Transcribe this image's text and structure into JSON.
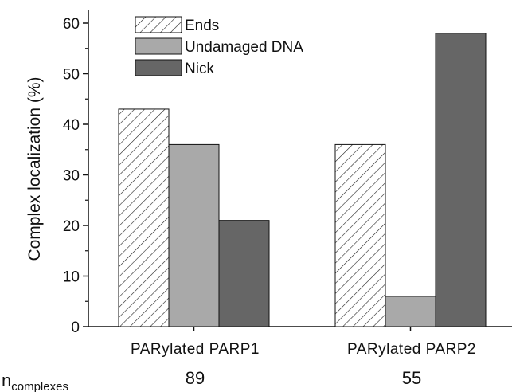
{
  "chart_data": {
    "type": "bar",
    "title": "",
    "xlabel": "",
    "ylabel": "Complex localization (%)",
    "ylim": [
      0,
      63
    ],
    "yticks": [
      0,
      10,
      20,
      30,
      40,
      50,
      60
    ],
    "categories": [
      "PARylated PARP1",
      "PARylated PARP2"
    ],
    "series": [
      {
        "name": "Ends",
        "values": [
          43,
          36
        ],
        "fill": "hatch",
        "color": "#ffffff"
      },
      {
        "name": "Undamaged DNA",
        "values": [
          36,
          6
        ],
        "fill": "solid",
        "color": "#a9a9a9"
      },
      {
        "name": "Nick",
        "values": [
          21,
          58
        ],
        "fill": "solid",
        "color": "#666666"
      }
    ],
    "legend_position": "top-left",
    "grid": false
  },
  "counts": {
    "label_main": "n",
    "label_sub": "complexes",
    "values": [
      "89",
      "55"
    ]
  }
}
